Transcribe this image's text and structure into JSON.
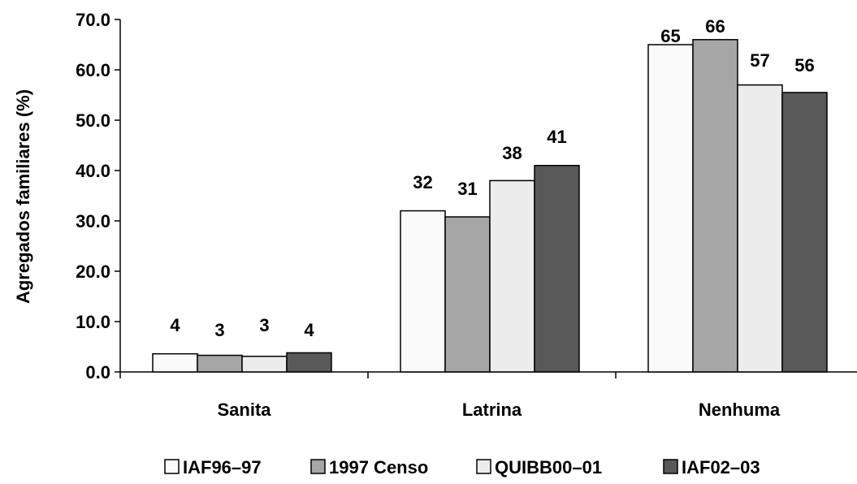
{
  "chart_data": {
    "type": "bar",
    "title": "",
    "ylabel": "Agregados familiares (%)",
    "xlabel": "",
    "ylim": [
      0,
      70
    ],
    "yticks": [
      "0.0",
      "10.0",
      "20.0",
      "30.0",
      "40.0",
      "50.0",
      "60.0",
      "70.0"
    ],
    "categories": [
      "Sanita",
      "Latrina",
      "Nenhuma"
    ],
    "series": [
      {
        "name": "IAF96–97",
        "color": "#fafafa",
        "values": [
          3.6,
          32.0,
          65.0
        ],
        "labels": [
          "4",
          "32",
          "65"
        ]
      },
      {
        "name": "1997 Censo",
        "color": "#a6a6a6",
        "values": [
          3.3,
          30.8,
          66.0
        ],
        "labels": [
          "3",
          "31",
          "66"
        ]
      },
      {
        "name": "QUIBB00–01",
        "color": "#ececec",
        "values": [
          3.1,
          38.0,
          57.0
        ],
        "labels": [
          "3",
          "38",
          "57"
        ]
      },
      {
        "name": "IAF02–03",
        "color": "#595959",
        "values": [
          3.8,
          41.0,
          55.5
        ],
        "labels": [
          "4",
          "41",
          "56"
        ]
      }
    ],
    "grid": false,
    "legend": "bottom"
  }
}
